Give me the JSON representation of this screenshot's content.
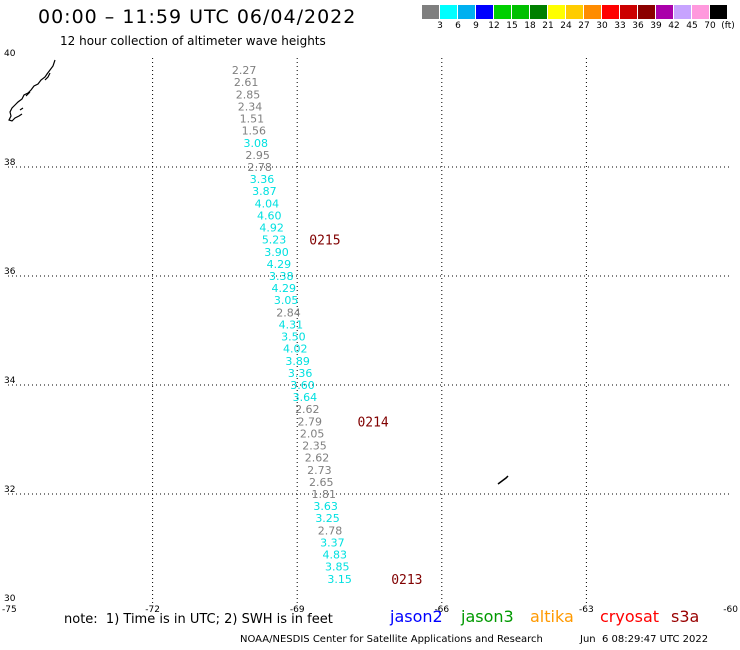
{
  "title": "00:00 – 11:59 UTC 06/04/2022",
  "subtitle": "12 hour collection of altimeter wave heights",
  "colorbar": {
    "swatches": [
      "#7f7f7f",
      "#00ffff",
      "#00b0f0",
      "#0000ff",
      "#00d000",
      "#00c000",
      "#008000",
      "#ffff00",
      "#ffcc00",
      "#ff8c00",
      "#ff0000",
      "#cc0000",
      "#8b0000",
      "#aa00aa",
      "#c7a3ff",
      "#ff99dd",
      "#000000"
    ],
    "labels": [
      "3",
      "6",
      "9",
      "12",
      "15",
      "18",
      "21",
      "24",
      "27",
      "30",
      "33",
      "36",
      "39",
      "42",
      "45",
      "70",
      "(ft)"
    ]
  },
  "map": {
    "lon_range": [
      -75,
      -60
    ],
    "lat_range": [
      30,
      40
    ],
    "lon_ticks": [
      "-75",
      "-72",
      "-69",
      "-66",
      "-63",
      "-60"
    ],
    "lat_ticks": [
      "40",
      "38",
      "36",
      "34",
      "32",
      "30"
    ],
    "grid": "dotted"
  },
  "observations": [
    {
      "v": "2.27",
      "lat": 39.78,
      "lon": -70.1,
      "c": "#7f7f7f"
    },
    {
      "v": "2.61",
      "lat": 39.56,
      "lon": -70.06,
      "c": "#7f7f7f"
    },
    {
      "v": "2.85",
      "lat": 39.33,
      "lon": -70.02,
      "c": "#7f7f7f"
    },
    {
      "v": "2.34",
      "lat": 39.11,
      "lon": -69.98,
      "c": "#7f7f7f"
    },
    {
      "v": "1.51",
      "lat": 38.89,
      "lon": -69.94,
      "c": "#7f7f7f"
    },
    {
      "v": "1.56",
      "lat": 38.67,
      "lon": -69.9,
      "c": "#7f7f7f"
    },
    {
      "v": "3.08",
      "lat": 38.44,
      "lon": -69.86,
      "c": "#00e0e0"
    },
    {
      "v": "2.95",
      "lat": 38.22,
      "lon": -69.82,
      "c": "#7f7f7f"
    },
    {
      "v": "2.78",
      "lat": 38.0,
      "lon": -69.78,
      "c": "#7f7f7f"
    },
    {
      "v": "3.36",
      "lat": 37.78,
      "lon": -69.73,
      "c": "#00e0e0"
    },
    {
      "v": "3.87",
      "lat": 37.56,
      "lon": -69.68,
      "c": "#00e0e0"
    },
    {
      "v": "4.04",
      "lat": 37.33,
      "lon": -69.63,
      "c": "#00e0e0"
    },
    {
      "v": "4.60",
      "lat": 37.11,
      "lon": -69.58,
      "c": "#00e0e0"
    },
    {
      "v": "4.92",
      "lat": 36.89,
      "lon": -69.53,
      "c": "#00e0e0"
    },
    {
      "v": "5.23",
      "lat": 36.67,
      "lon": -69.48,
      "c": "#00e0e0"
    },
    {
      "v": "3.90",
      "lat": 36.44,
      "lon": -69.43,
      "c": "#00e0e0"
    },
    {
      "v": "4.29",
      "lat": 36.22,
      "lon": -69.38,
      "c": "#00e0e0"
    },
    {
      "v": "3.38",
      "lat": 36.0,
      "lon": -69.33,
      "c": "#00e0e0"
    },
    {
      "v": "4.29",
      "lat": 35.78,
      "lon": -69.28,
      "c": "#00e0e0"
    },
    {
      "v": "3.05",
      "lat": 35.56,
      "lon": -69.23,
      "c": "#00e0e0"
    },
    {
      "v": "2.84",
      "lat": 35.33,
      "lon": -69.18,
      "c": "#7f7f7f"
    },
    {
      "v": "4.31",
      "lat": 35.11,
      "lon": -69.13,
      "c": "#00e0e0"
    },
    {
      "v": "3.50",
      "lat": 34.89,
      "lon": -69.08,
      "c": "#00e0e0"
    },
    {
      "v": "4.02",
      "lat": 34.67,
      "lon": -69.04,
      "c": "#00e0e0"
    },
    {
      "v": "3.89",
      "lat": 34.44,
      "lon": -68.99,
      "c": "#00e0e0"
    },
    {
      "v": "3.36",
      "lat": 34.22,
      "lon": -68.94,
      "c": "#00e0e0"
    },
    {
      "v": "3.60",
      "lat": 34.0,
      "lon": -68.89,
      "c": "#00e0e0"
    },
    {
      "v": "3.64",
      "lat": 33.78,
      "lon": -68.84,
      "c": "#00e0e0"
    },
    {
      "v": "2.62",
      "lat": 33.56,
      "lon": -68.79,
      "c": "#7f7f7f"
    },
    {
      "v": "2.79",
      "lat": 33.33,
      "lon": -68.74,
      "c": "#7f7f7f"
    },
    {
      "v": "2.05",
      "lat": 33.11,
      "lon": -68.69,
      "c": "#7f7f7f"
    },
    {
      "v": "2.35",
      "lat": 32.89,
      "lon": -68.64,
      "c": "#7f7f7f"
    },
    {
      "v": "2.62",
      "lat": 32.67,
      "lon": -68.59,
      "c": "#7f7f7f"
    },
    {
      "v": "2.73",
      "lat": 32.44,
      "lon": -68.54,
      "c": "#7f7f7f"
    },
    {
      "v": "2.65",
      "lat": 32.22,
      "lon": -68.5,
      "c": "#7f7f7f"
    },
    {
      "v": "1.81",
      "lat": 32.0,
      "lon": -68.45,
      "c": "#7f7f7f"
    },
    {
      "v": "3.63",
      "lat": 31.78,
      "lon": -68.41,
      "c": "#00e0e0"
    },
    {
      "v": "3.25",
      "lat": 31.56,
      "lon": -68.37,
      "c": "#00e0e0"
    },
    {
      "v": "2.78",
      "lat": 31.33,
      "lon": -68.32,
      "c": "#7f7f7f"
    },
    {
      "v": "3.37",
      "lat": 31.11,
      "lon": -68.27,
      "c": "#00e0e0"
    },
    {
      "v": "4.83",
      "lat": 30.89,
      "lon": -68.22,
      "c": "#00e0e0"
    },
    {
      "v": "3.85",
      "lat": 30.67,
      "lon": -68.17,
      "c": "#00e0e0"
    },
    {
      "v": "3.15",
      "lat": 30.44,
      "lon": -68.12,
      "c": "#00e0e0"
    }
  ],
  "time_labels": [
    {
      "text": "0215",
      "lat": 36.67,
      "lon": -68.75
    },
    {
      "text": "0214",
      "lat": 33.33,
      "lon": -67.75
    },
    {
      "text": "0213",
      "lat": 30.44,
      "lon": -67.05
    }
  ],
  "time_label_color": "#800000",
  "coast_stroke_color": "#000000",
  "note": "note:  1) Time is in UTC; 2) SWH is in feet",
  "satellites": [
    {
      "name": "jason2",
      "color": "#0000ff"
    },
    {
      "name": "jason3",
      "color": "#009900"
    },
    {
      "name": "altika",
      "color": "#ff9900"
    },
    {
      "name": "cryosat",
      "color": "#ff0000"
    },
    {
      "name": "s3a",
      "color": "#990000"
    }
  ],
  "credit": "NOAA/NESDIS Center for Satellite Applications and Research",
  "generated": "Jun  6 08:29:47 UTC 2022"
}
